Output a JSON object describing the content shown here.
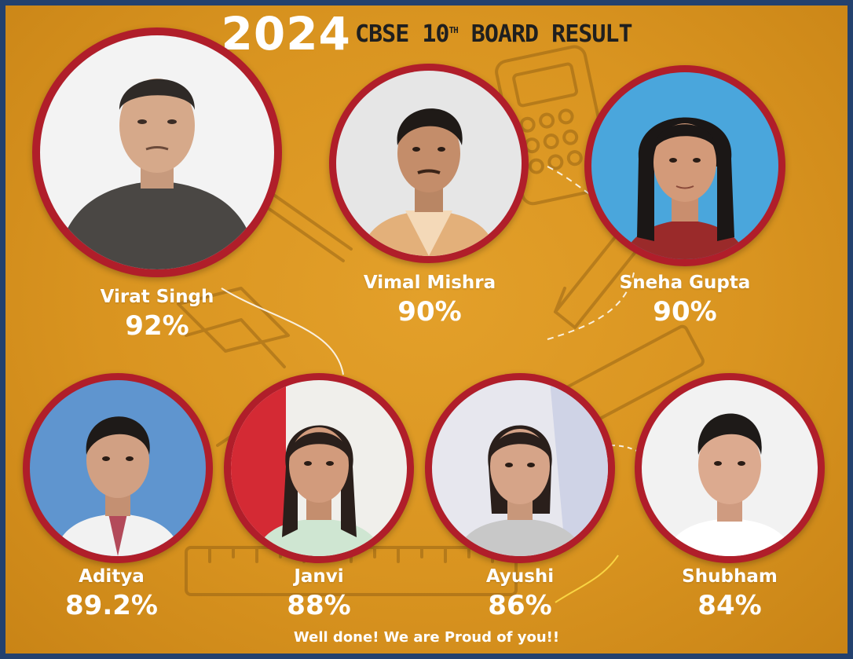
{
  "title": {
    "year": "2024",
    "text_pre": "CBSE 10",
    "text_sup": "TH",
    "text_post": " BOARD RESULT"
  },
  "students": [
    {
      "name": "Virat Singh",
      "percent": "92%"
    },
    {
      "name": "Vimal Mishra",
      "percent": "90%"
    },
    {
      "name": "Sneha Gupta",
      "percent": "90%"
    },
    {
      "name": "Aditya",
      "percent": "89.2%"
    },
    {
      "name": "Janvi",
      "percent": "88%"
    },
    {
      "name": "Ayushi",
      "percent": "86%"
    },
    {
      "name": "Shubham",
      "percent": "84%"
    }
  ],
  "footer": "Well done! We are Proud of you!!",
  "colors": {
    "background": "#d99420",
    "frame": "#23416e",
    "ring": "#b01e2a",
    "text": "#ffffff"
  }
}
